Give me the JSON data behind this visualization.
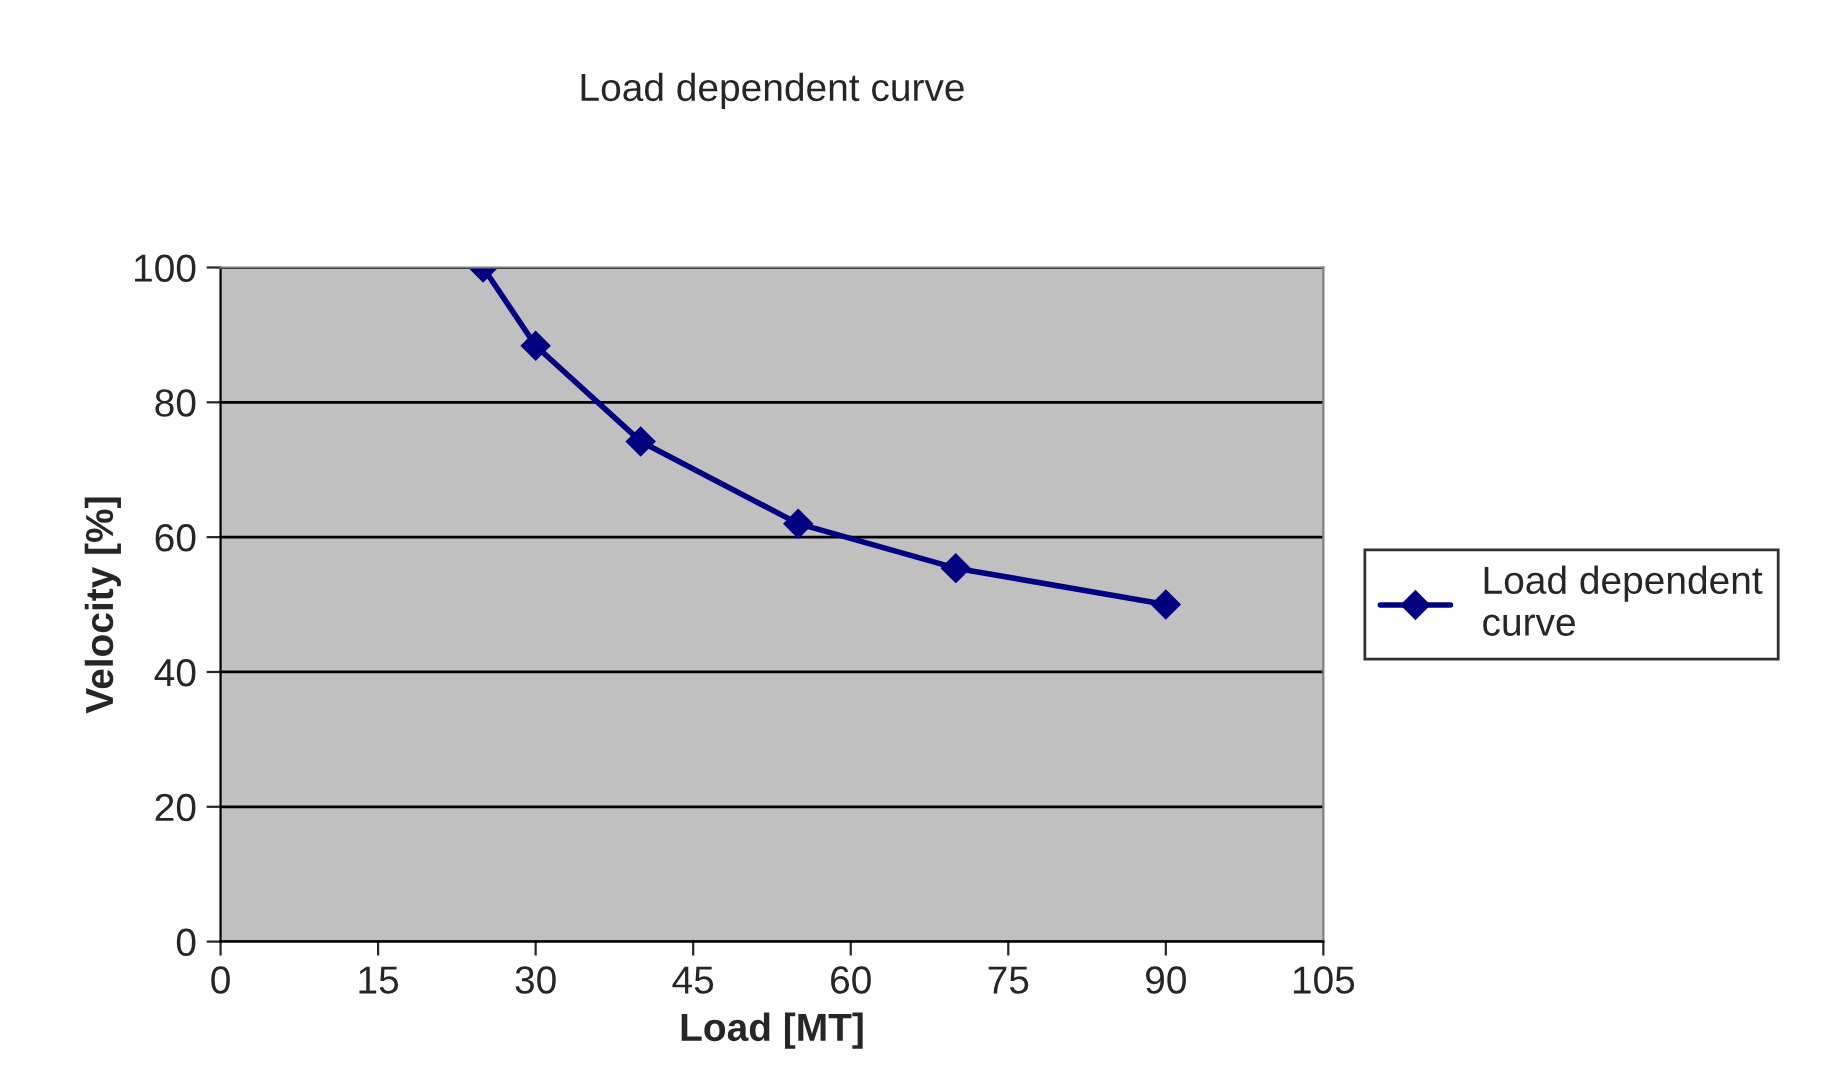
{
  "chart_data": {
    "type": "line",
    "title": "Load dependent curve",
    "xlabel": "Load [MT]",
    "ylabel": "Velocity [%]",
    "x": [
      25,
      30,
      40,
      55,
      70,
      90
    ],
    "series": [
      {
        "name": "Load dependent curve",
        "color": "#000080",
        "values": [
          100,
          88.4,
          74.2,
          62,
          55.4,
          50
        ]
      }
    ],
    "xlim": [
      0,
      105
    ],
    "xticks": [
      0,
      15,
      30,
      45,
      60,
      75,
      90,
      105
    ],
    "ylim": [
      0,
      100
    ],
    "yticks": [
      0,
      20,
      40,
      60,
      80,
      100
    ],
    "grid": "y",
    "legend": "right",
    "marker": "diamond",
    "line_style": "solid"
  }
}
